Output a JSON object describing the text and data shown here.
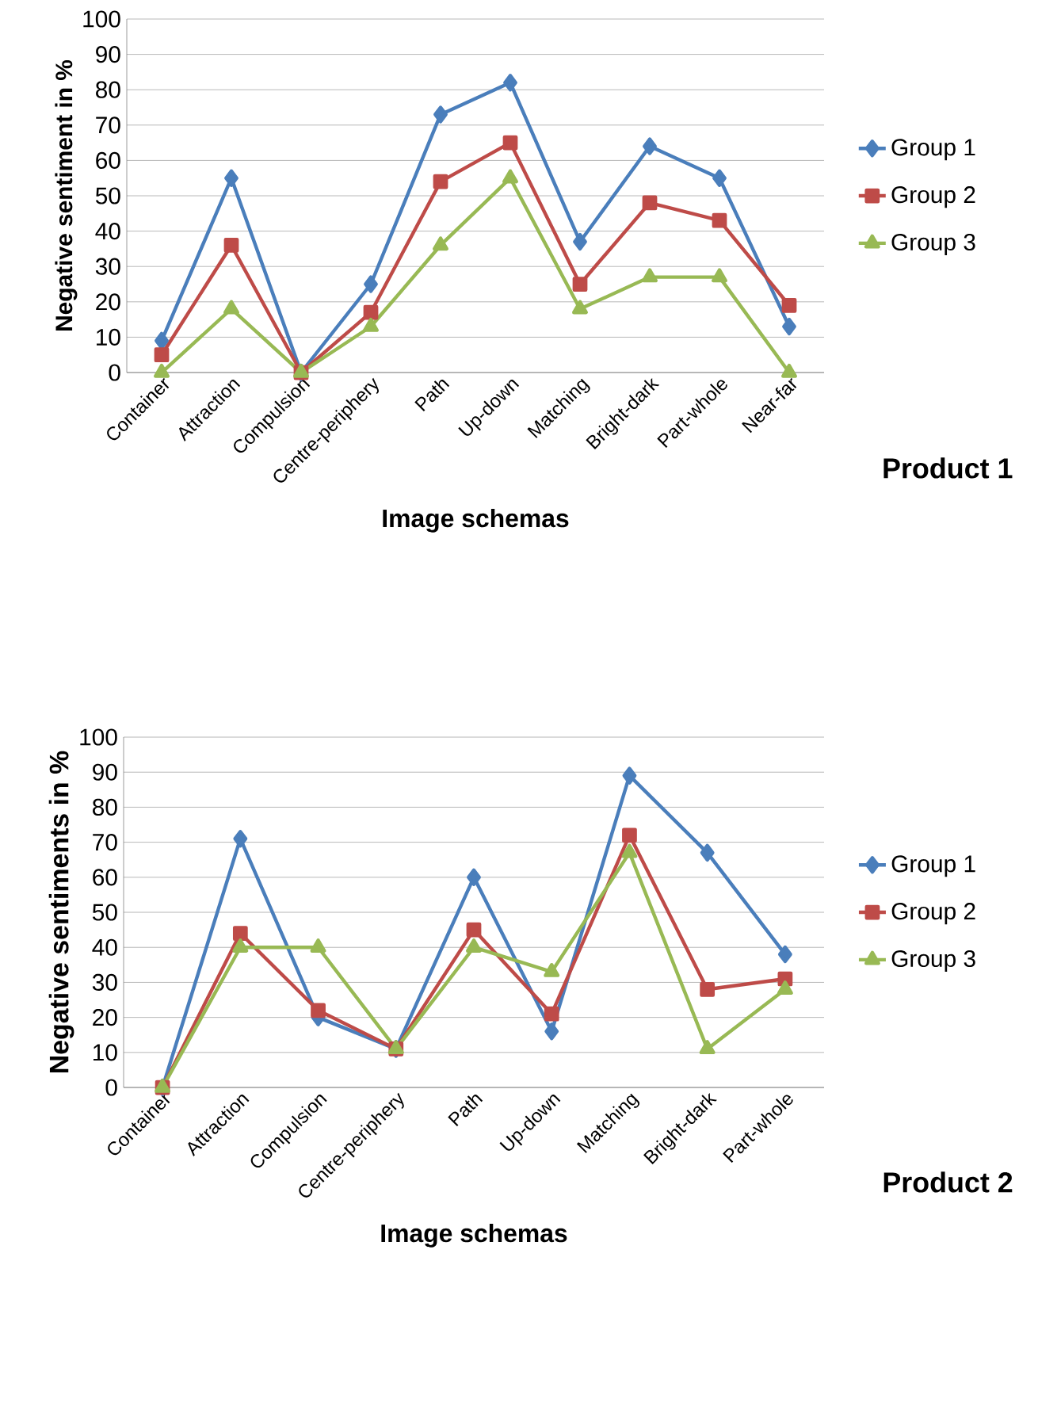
{
  "chart_data": [
    {
      "type": "line",
      "ylabel": "Negative sentiment in %",
      "xlabel": "Image schemas",
      "annotations": [
        "Product 1"
      ],
      "categories": [
        "Container",
        "Attraction",
        "Compulsion",
        "Centre-periphery",
        "Path",
        "Up-down",
        "Matching",
        "Bright-dark",
        "Part-whole",
        "Near-far"
      ],
      "ylim": [
        0,
        100
      ],
      "yticks": [
        0,
        10,
        20,
        30,
        40,
        50,
        60,
        70,
        80,
        90,
        100
      ],
      "grid": "y",
      "legend": "right",
      "series": [
        {
          "name": "Group 1",
          "color": "#4a7ebb",
          "marker": "diamond",
          "values": [
            9,
            55,
            0,
            25,
            73,
            82,
            37,
            64,
            55,
            13
          ]
        },
        {
          "name": "Group 2",
          "color": "#be4b48",
          "marker": "square",
          "values": [
            5,
            36,
            0,
            17,
            54,
            65,
            25,
            48,
            43,
            19
          ]
        },
        {
          "name": "Group 3",
          "color": "#98b954",
          "marker": "triangle",
          "values": [
            0,
            18,
            0,
            13,
            36,
            55,
            18,
            27,
            27,
            0
          ]
        }
      ]
    },
    {
      "type": "line",
      "ylabel": "Negative sentiments in %",
      "xlabel": "Image schemas",
      "annotations": [
        "Product 2"
      ],
      "categories": [
        "Container",
        "Attraction",
        "Compulsion",
        "Centre-periphery",
        "Path",
        "Up-down",
        "Matching",
        "Bright-dark",
        "Part-whole"
      ],
      "ylim": [
        0,
        100
      ],
      "yticks": [
        0,
        10,
        20,
        30,
        40,
        50,
        60,
        70,
        80,
        90,
        100
      ],
      "grid": "y",
      "legend": "right",
      "series": [
        {
          "name": "Group 1",
          "color": "#4a7ebb",
          "marker": "diamond",
          "values": [
            0,
            71,
            20,
            11,
            60,
            16,
            89,
            67,
            38
          ]
        },
        {
          "name": "Group 2",
          "color": "#be4b48",
          "marker": "square",
          "values": [
            0,
            44,
            22,
            11,
            45,
            21,
            72,
            28,
            31
          ]
        },
        {
          "name": "Group 3",
          "color": "#98b954",
          "marker": "triangle",
          "values": [
            0,
            40,
            40,
            11,
            40,
            33,
            67,
            11,
            28
          ]
        }
      ]
    }
  ]
}
